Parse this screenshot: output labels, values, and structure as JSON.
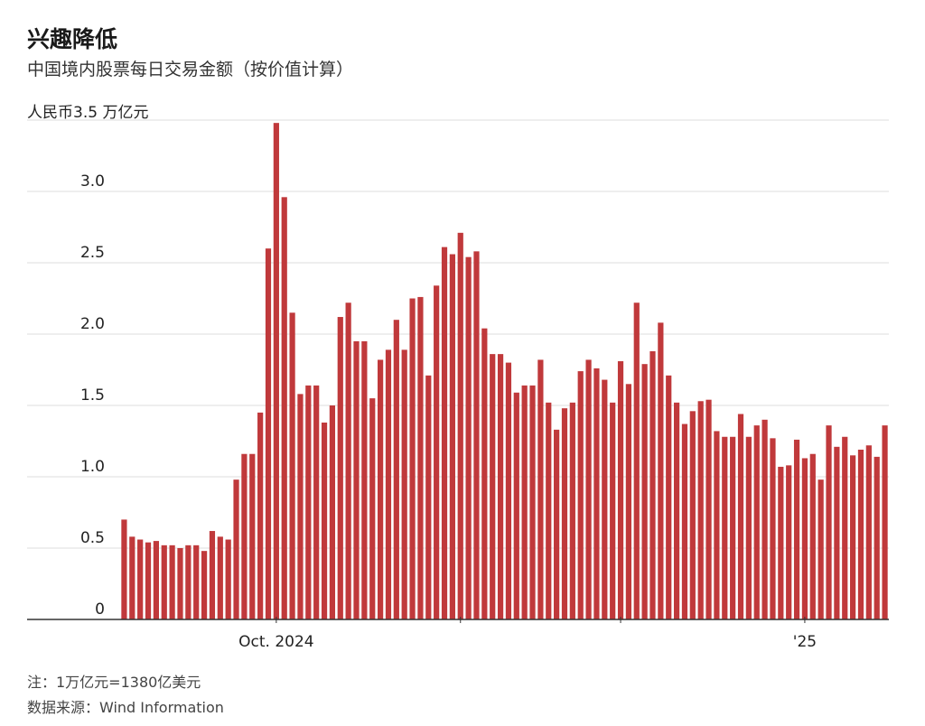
{
  "header": {
    "title": "兴趣降低",
    "subtitle": "中国境内股票每日交易金额（按价值计算）"
  },
  "footer": {
    "note": "注：1万亿元=1380亿美元",
    "source": "数据来源：Wind Information"
  },
  "colors": {
    "bar": "#c0393b",
    "grid": "#dcdcdc",
    "axis": "#333333",
    "text": "#222222"
  },
  "chart_data": {
    "type": "bar",
    "title": "兴趣降低",
    "subtitle": "中国境内股票每日交易金额（按价值计算）",
    "ylabel": "人民币3.5 万亿元",
    "ylim": [
      0,
      3.5
    ],
    "yticks": [
      {
        "value": 0,
        "label": "0"
      },
      {
        "value": 0.5,
        "label": "0.5"
      },
      {
        "value": 1.0,
        "label": "1.0"
      },
      {
        "value": 1.5,
        "label": "1.5"
      },
      {
        "value": 2.0,
        "label": "2.0"
      },
      {
        "value": 2.5,
        "label": "2.5"
      },
      {
        "value": 3.0,
        "label": "3.0"
      },
      {
        "value": 3.5,
        "label": "人民币3.5 万亿元"
      }
    ],
    "xticks": [
      {
        "index": 19,
        "label": "Oct. 2024"
      },
      {
        "index": 42,
        "label": ""
      },
      {
        "index": 62,
        "label": ""
      },
      {
        "index": 85,
        "label": "'25"
      }
    ],
    "grid": true,
    "values": [
      0.7,
      0.58,
      0.56,
      0.54,
      0.55,
      0.52,
      0.52,
      0.5,
      0.52,
      0.52,
      0.48,
      0.62,
      0.58,
      0.56,
      0.98,
      1.16,
      1.16,
      1.45,
      2.6,
      3.48,
      2.96,
      2.15,
      1.58,
      1.64,
      1.64,
      1.38,
      1.5,
      2.12,
      2.22,
      1.95,
      1.95,
      1.55,
      1.82,
      1.89,
      2.1,
      1.89,
      2.25,
      2.26,
      1.71,
      2.34,
      2.61,
      2.56,
      2.71,
      2.54,
      2.58,
      2.04,
      1.86,
      1.86,
      1.8,
      1.59,
      1.64,
      1.64,
      1.82,
      1.52,
      1.33,
      1.48,
      1.52,
      1.74,
      1.82,
      1.76,
      1.68,
      1.52,
      1.81,
      1.65,
      2.22,
      1.79,
      1.88,
      2.08,
      1.71,
      1.52,
      1.37,
      1.46,
      1.53,
      1.54,
      1.32,
      1.28,
      1.28,
      1.44,
      1.28,
      1.36,
      1.4,
      1.27,
      1.07,
      1.08,
      1.26,
      1.13,
      1.16,
      0.98,
      1.36,
      1.21,
      1.28,
      1.15,
      1.19,
      1.22,
      1.14,
      1.36
    ]
  }
}
